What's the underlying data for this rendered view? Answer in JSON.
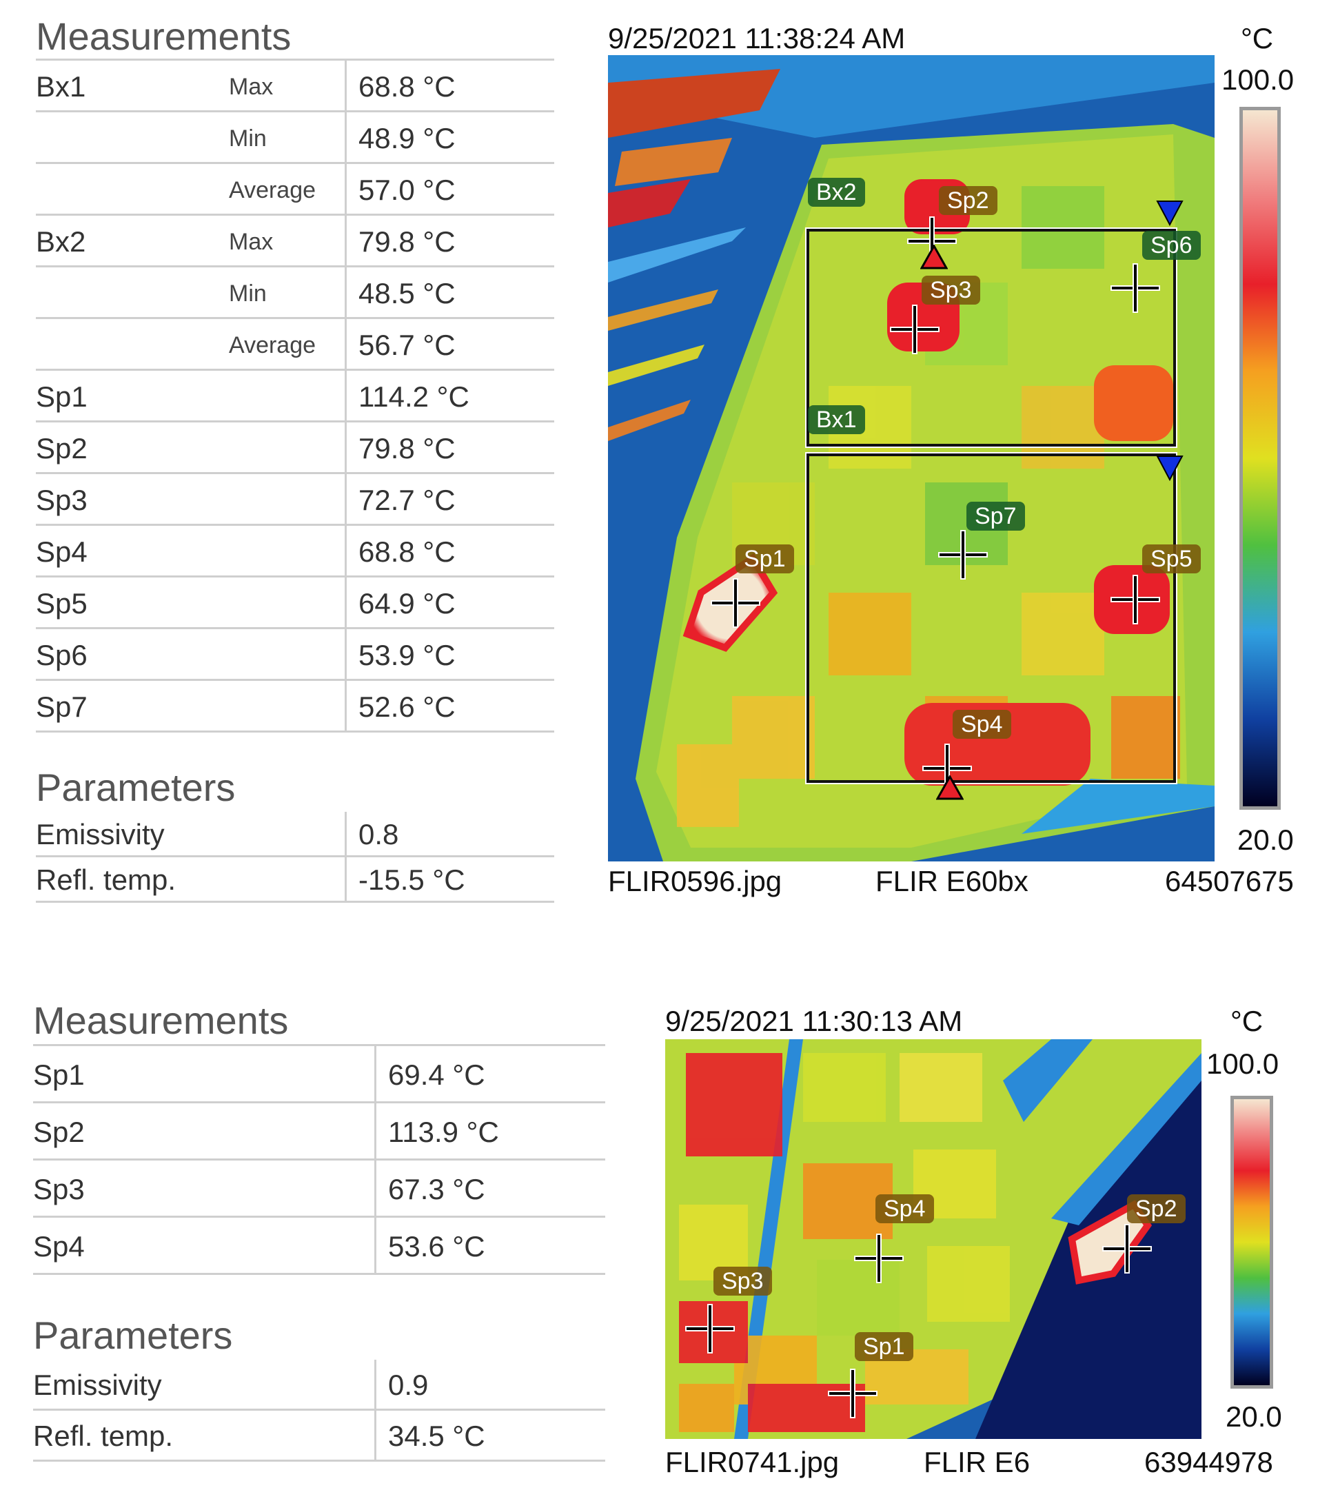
{
  "panel1": {
    "measurements_title": "Measurements",
    "parameters_title": "Parameters",
    "rows": [
      {
        "label": "Bx1",
        "sub": "Max",
        "value": "68.8 °C"
      },
      {
        "label": "",
        "sub": "Min",
        "value": "48.9 °C"
      },
      {
        "label": "",
        "sub": "Average",
        "value": "57.0 °C"
      },
      {
        "label": "Bx2",
        "sub": "Max",
        "value": "79.8 °C"
      },
      {
        "label": "",
        "sub": "Min",
        "value": "48.5 °C"
      },
      {
        "label": "",
        "sub": "Average",
        "value": "56.7 °C"
      },
      {
        "label": "Sp1",
        "sub": "",
        "value": "114.2 °C"
      },
      {
        "label": "Sp2",
        "sub": "",
        "value": "79.8 °C"
      },
      {
        "label": "Sp3",
        "sub": "",
        "value": "72.7 °C"
      },
      {
        "label": "Sp4",
        "sub": "",
        "value": "68.8 °C"
      },
      {
        "label": "Sp5",
        "sub": "",
        "value": "64.9 °C"
      },
      {
        "label": "Sp6",
        "sub": "",
        "value": "53.9 °C"
      },
      {
        "label": "Sp7",
        "sub": "",
        "value": "52.6 °C"
      }
    ],
    "params": [
      {
        "label": "Emissivity",
        "value": "0.8"
      },
      {
        "label": "Refl. temp.",
        "value": "-15.5  °C"
      }
    ],
    "timestamp": "9/25/2021 11:38:24 AM",
    "unit": "°C",
    "scale_max": "100.0",
    "scale_min": "20.0",
    "filename": "FLIR0596.jpg",
    "camera": "FLIR E60bx",
    "serial": "64507675",
    "markers": {
      "sp1": "Sp1",
      "sp2": "Sp2",
      "sp3": "Sp3",
      "sp4": "Sp4",
      "sp5": "Sp5",
      "sp6": "Sp6",
      "sp7": "Sp7",
      "bx1": "Bx1",
      "bx2": "Bx2"
    }
  },
  "panel2": {
    "measurements_title": "Measurements",
    "parameters_title": "Parameters",
    "rows": [
      {
        "label": "Sp1",
        "value": "69.4 °C"
      },
      {
        "label": "Sp2",
        "value": "113.9 °C"
      },
      {
        "label": "Sp3",
        "value": "67.3 °C"
      },
      {
        "label": "Sp4",
        "value": "53.6 °C"
      }
    ],
    "params": [
      {
        "label": "Emissivity",
        "value": "0.9"
      },
      {
        "label": "Refl. temp.",
        "value": "34.5  °C"
      }
    ],
    "timestamp": "9/25/2021 11:30:13 AM",
    "unit": "°C",
    "scale_max": "100.0",
    "scale_min": "20.0",
    "filename": "FLIR0741.jpg",
    "camera": "FLIR E6",
    "serial": "63944978",
    "markers": {
      "sp1": "Sp1",
      "sp2": "Sp2",
      "sp3": "Sp3",
      "sp4": "Sp4"
    }
  },
  "colors": {
    "scale": [
      "#f5e6d0",
      "#f08080",
      "#e8202a",
      "#f5a020",
      "#e0e020",
      "#50c040",
      "#30a0e0",
      "#1040a0",
      "#000020"
    ]
  }
}
